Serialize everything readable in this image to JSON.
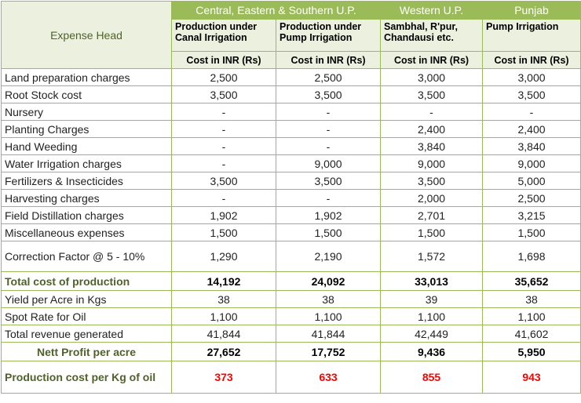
{
  "header": {
    "expense_head": "Expense Head",
    "regions": [
      "Central, Eastern & Southern U.P.",
      "Western U.P.",
      "Punjab"
    ],
    "subheads": [
      "Production under Canal Irrigation",
      "Production under Pump Irrigation",
      "Sambhal, R'pur, Chandausi etc.",
      "Pump Irrigation"
    ],
    "cost_label": "Cost in INR (Rs)"
  },
  "rows": [
    {
      "label": "Land preparation charges",
      "values": [
        "2,500",
        "2,500",
        "3,000",
        "3,000"
      ]
    },
    {
      "label": "Root Stock cost",
      "values": [
        "3,500",
        "3,500",
        "3,500",
        "3,500"
      ]
    },
    {
      "label": "Nursery",
      "values": [
        "-",
        "-",
        "-",
        "-"
      ]
    },
    {
      "label": "Planting Charges",
      "values": [
        "-",
        "-",
        "2,400",
        "2,400"
      ]
    },
    {
      "label": "Hand Weeding",
      "values": [
        "-",
        "-",
        "3,840",
        "3,840"
      ]
    },
    {
      "label": "Water Irrigation charges",
      "values": [
        "-",
        "9,000",
        "9,000",
        "9,000"
      ]
    },
    {
      "label": "Fertilizers & Insecticides",
      "values": [
        "3,500",
        "3,500",
        "3,500",
        "5,000"
      ]
    },
    {
      "label": "Harvesting charges",
      "values": [
        "-",
        "-",
        "2,000",
        "2,500"
      ]
    },
    {
      "label": "Field Distillation charges",
      "values": [
        "1,902",
        "1,902",
        "2,701",
        "3,215"
      ]
    },
    {
      "label": "Miscellaneous expenses",
      "values": [
        "1,500",
        "1,500",
        "1,500",
        "1,500"
      ]
    },
    {
      "label": "Correction Factor @ 5 - 10%",
      "values": [
        "1,290",
        "2,190",
        "1,572",
        "1,698"
      ]
    },
    {
      "label": "Total cost of production",
      "values": [
        "14,192",
        "24,092",
        "33,013",
        "35,652"
      ]
    },
    {
      "label": "Yield per Acre in Kgs",
      "values": [
        "38",
        "38",
        "39",
        "38"
      ]
    },
    {
      "label": "Spot Rate for Oil",
      "values": [
        "1,100",
        "1,100",
        "1,100",
        "1,100"
      ]
    },
    {
      "label": "Total revenue generated",
      "values": [
        "41,844",
        "41,844",
        "42,449",
        "41,602"
      ]
    },
    {
      "label": "Nett Profit per acre",
      "values": [
        "27,652",
        "17,752",
        "9,436",
        "5,950"
      ]
    },
    {
      "label": "Production cost per Kg of oil",
      "values": [
        "373",
        "633",
        "855",
        "943"
      ]
    }
  ]
}
